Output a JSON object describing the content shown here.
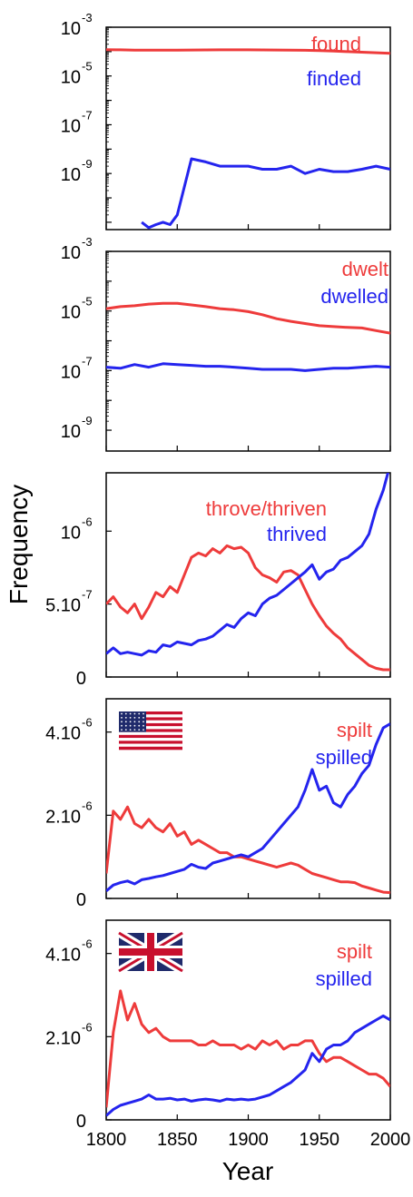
{
  "figure": {
    "ylabel": "Frequency",
    "xlabel": "Year",
    "x_range": [
      1800,
      2000
    ],
    "x_ticks": [
      "1800",
      "1850",
      "1900",
      "1950",
      "2000"
    ]
  },
  "colors": {
    "irregular": "#ee3b3b",
    "regular": "#2424ee"
  },
  "chart_data": [
    {
      "type": "line",
      "yscale": "log",
      "ylim": [
        5e-12,
        0.001
      ],
      "ytick_labels": [
        {
          "base": "10",
          "exp": "-3",
          "value": 0.001
        },
        {
          "base": "10",
          "exp": "-5",
          "value": 1e-05
        },
        {
          "base": "10",
          "exp": "-7",
          "value": 1e-07
        },
        {
          "base": "10",
          "exp": "-9",
          "value": 1e-09
        }
      ],
      "x": [
        1800,
        1810,
        1820,
        1825,
        1830,
        1835,
        1840,
        1845,
        1850,
        1860,
        1870,
        1880,
        1890,
        1900,
        1910,
        1920,
        1930,
        1940,
        1950,
        1960,
        1970,
        1980,
        1990,
        2000
      ],
      "series": [
        {
          "name": "found",
          "color": "#ee3b3b",
          "values": [
            0.00012,
            0.000118,
            0.000115,
            0.000115,
            0.000114,
            0.000114,
            0.000114,
            0.000114,
            0.000115,
            0.000116,
            0.000117,
            0.000118,
            0.000118,
            0.000118,
            0.000117,
            0.000116,
            0.000115,
            0.000113,
            0.00011,
            0.000105,
            0.0001,
            9.5e-05,
            9e-05,
            8.5e-05
          ]
        },
        {
          "name": "finded",
          "color": "#2424ee",
          "values": [
            null,
            null,
            null,
            1e-11,
            6e-12,
            8e-12,
            1e-11,
            8e-12,
            2e-11,
            4e-09,
            3e-09,
            2e-09,
            2e-09,
            2e-09,
            1.5e-09,
            1.5e-09,
            2e-09,
            1e-09,
            1.5e-09,
            1.2e-09,
            1.2e-09,
            1.5e-09,
            2e-09,
            1.5e-09
          ]
        }
      ]
    },
    {
      "type": "line",
      "yscale": "log",
      "ylim": [
        2e-10,
        0.001
      ],
      "ytick_labels": [
        {
          "base": "10",
          "exp": "-3",
          "value": 0.001
        },
        {
          "base": "10",
          "exp": "-5",
          "value": 1e-05
        },
        {
          "base": "10",
          "exp": "-7",
          "value": 1e-07
        },
        {
          "base": "10",
          "exp": "-9",
          "value": 1e-09
        }
      ],
      "x": [
        1800,
        1810,
        1820,
        1830,
        1840,
        1850,
        1860,
        1870,
        1880,
        1890,
        1900,
        1910,
        1920,
        1930,
        1940,
        1950,
        1960,
        1970,
        1980,
        1990,
        2000
      ],
      "series": [
        {
          "name": "dwelt",
          "color": "#ee3b3b",
          "values": [
            1.2e-05,
            1.4e-05,
            1.5e-05,
            1.7e-05,
            1.8e-05,
            1.8e-05,
            1.6e-05,
            1.4e-05,
            1.2e-05,
            1.1e-05,
            9.5e-06,
            7.5e-06,
            5.5e-06,
            4.5e-06,
            3.8e-06,
            3.2e-06,
            3e-06,
            2.8e-06,
            2.7e-06,
            2.2e-06,
            1.8e-06
          ]
        },
        {
          "name": "dwelled",
          "color": "#2424ee",
          "values": [
            1.3e-07,
            1.2e-07,
            1.6e-07,
            1.3e-07,
            1.7e-07,
            1.6e-07,
            1.5e-07,
            1.4e-07,
            1.4e-07,
            1.3e-07,
            1.2e-07,
            1.1e-07,
            1.1e-07,
            1.1e-07,
            1e-07,
            1.1e-07,
            1.2e-07,
            1.2e-07,
            1.3e-07,
            1.4e-07,
            1.3e-07
          ]
        }
      ]
    },
    {
      "type": "line",
      "yscale": "linear",
      "ylim": [
        0,
        1.4e-06
      ],
      "ytick_labels": [
        {
          "base": "0",
          "exp": "",
          "value": 0
        },
        {
          "base": "5.10",
          "exp": "-7",
          "value": 5e-07
        },
        {
          "base": "10",
          "exp": "-6",
          "value": 1e-06
        }
      ],
      "x": [
        1800,
        1805,
        1810,
        1815,
        1820,
        1825,
        1830,
        1835,
        1840,
        1845,
        1850,
        1855,
        1860,
        1865,
        1870,
        1875,
        1880,
        1885,
        1890,
        1895,
        1900,
        1905,
        1910,
        1915,
        1920,
        1925,
        1930,
        1935,
        1940,
        1945,
        1950,
        1955,
        1960,
        1965,
        1970,
        1975,
        1980,
        1985,
        1990,
        1995,
        2000
      ],
      "series": [
        {
          "name": "throve/thriven",
          "color": "#ee3b3b",
          "values": [
            5e-07,
            5.5e-07,
            4.8e-07,
            4.4e-07,
            5e-07,
            4e-07,
            4.8e-07,
            5.8e-07,
            5.5e-07,
            6.2e-07,
            5.8e-07,
            7e-07,
            8.2e-07,
            8.5e-07,
            8.3e-07,
            8.8e-07,
            8.5e-07,
            9e-07,
            8.8e-07,
            8.9e-07,
            8.5e-07,
            7.5e-07,
            7e-07,
            6.8e-07,
            6.5e-07,
            7.2e-07,
            7.3e-07,
            7e-07,
            6e-07,
            5e-07,
            4.2e-07,
            3.5e-07,
            3e-07,
            2.6e-07,
            2e-07,
            1.6e-07,
            1.2e-07,
            8e-08,
            6e-08,
            5e-08,
            5e-08
          ]
        },
        {
          "name": "thrived",
          "color": "#2424ee",
          "values": [
            1.6e-07,
            2e-07,
            1.6e-07,
            1.7e-07,
            1.6e-07,
            1.5e-07,
            1.8e-07,
            1.7e-07,
            2.2e-07,
            2.1e-07,
            2.4e-07,
            2.3e-07,
            2.2e-07,
            2.5e-07,
            2.6e-07,
            2.8e-07,
            3.2e-07,
            3.6e-07,
            3.4e-07,
            4e-07,
            4.4e-07,
            4.2e-07,
            5e-07,
            5.4e-07,
            5.6e-07,
            6e-07,
            6.4e-07,
            6.8e-07,
            7.2e-07,
            7.7e-07,
            6.7e-07,
            7.2e-07,
            7.4e-07,
            8e-07,
            8.2e-07,
            8.6e-07,
            9e-07,
            9.8e-07,
            1.15e-06,
            1.28e-06,
            1.46e-06
          ]
        }
      ]
    },
    {
      "type": "line",
      "yscale": "linear",
      "ylim": [
        0,
        4.8e-06
      ],
      "flag": "us-flag",
      "ytick_labels": [
        {
          "base": "0",
          "exp": "",
          "value": 0
        },
        {
          "base": "2.10",
          "exp": "-6",
          "value": 2e-06
        },
        {
          "base": "4.10",
          "exp": "-6",
          "value": 4e-06
        }
      ],
      "x": [
        1800,
        1805,
        1810,
        1815,
        1820,
        1825,
        1830,
        1835,
        1840,
        1845,
        1850,
        1855,
        1860,
        1865,
        1870,
        1875,
        1880,
        1885,
        1890,
        1895,
        1900,
        1905,
        1910,
        1915,
        1920,
        1925,
        1930,
        1935,
        1940,
        1945,
        1950,
        1955,
        1960,
        1965,
        1970,
        1975,
        1980,
        1985,
        1990,
        1995,
        2000
      ],
      "series": [
        {
          "name": "spilt",
          "color": "#ee3b3b",
          "values": [
            6e-07,
            2.1e-06,
            1.9e-06,
            2.2e-06,
            1.8e-06,
            1.7e-06,
            1.9e-06,
            1.7e-06,
            1.6e-06,
            1.8e-06,
            1.5e-06,
            1.6e-06,
            1.3e-06,
            1.4e-06,
            1.3e-06,
            1.2e-06,
            1.1e-06,
            1.1e-06,
            1e-06,
            1e-06,
            9.5e-07,
            9e-07,
            8.5e-07,
            8e-07,
            7.5e-07,
            8e-07,
            8.5e-07,
            8e-07,
            7e-07,
            6e-07,
            5.5e-07,
            5e-07,
            4.5e-07,
            4e-07,
            4e-07,
            3.8e-07,
            3e-07,
            2.5e-07,
            2e-07,
            1.5e-07,
            1.4e-07
          ]
        },
        {
          "name": "spilled",
          "color": "#2424ee",
          "values": [
            1.8e-07,
            3.2e-07,
            3.8e-07,
            4.2e-07,
            3.5e-07,
            4.5e-07,
            4.8e-07,
            5.2e-07,
            5.5e-07,
            6e-07,
            6.5e-07,
            7e-07,
            8.2e-07,
            7.5e-07,
            7.2e-07,
            8.5e-07,
            9e-07,
            9.5e-07,
            1e-06,
            1.05e-06,
            1e-06,
            1.1e-06,
            1.2e-06,
            1.4e-06,
            1.6e-06,
            1.8e-06,
            2e-06,
            2.2e-06,
            2.6e-06,
            3.1e-06,
            2.6e-06,
            2.7e-06,
            2.3e-06,
            2.2e-06,
            2.5e-06,
            2.7e-06,
            3e-06,
            3.2e-06,
            3.7e-06,
            4.1e-06,
            4.2e-06
          ]
        }
      ]
    },
    {
      "type": "line",
      "yscale": "linear",
      "ylim": [
        0,
        4.8e-06
      ],
      "flag": "uk-flag",
      "ytick_labels": [
        {
          "base": "0",
          "exp": "",
          "value": 0
        },
        {
          "base": "2.10",
          "exp": "-6",
          "value": 2e-06
        },
        {
          "base": "4.10",
          "exp": "-6",
          "value": 4e-06
        }
      ],
      "x": [
        1800,
        1805,
        1810,
        1815,
        1820,
        1825,
        1830,
        1835,
        1840,
        1845,
        1850,
        1855,
        1860,
        1865,
        1870,
        1875,
        1880,
        1885,
        1890,
        1895,
        1900,
        1905,
        1910,
        1915,
        1920,
        1925,
        1930,
        1935,
        1940,
        1945,
        1950,
        1955,
        1960,
        1965,
        1970,
        1975,
        1980,
        1985,
        1990,
        1995,
        2000
      ],
      "series": [
        {
          "name": "spilt",
          "color": "#ee3b3b",
          "values": [
            3e-07,
            2.1e-06,
            3.1e-06,
            2.4e-06,
            2.8e-06,
            2.3e-06,
            2.1e-06,
            2.2e-06,
            2e-06,
            1.9e-06,
            1.9e-06,
            1.9e-06,
            1.9e-06,
            1.8e-06,
            1.8e-06,
            1.9e-06,
            1.8e-06,
            1.8e-06,
            1.8e-06,
            1.7e-06,
            1.8e-06,
            1.7e-06,
            1.9e-06,
            1.8e-06,
            1.9e-06,
            1.7e-06,
            1.8e-06,
            1.8e-06,
            1.9e-06,
            1.9e-06,
            1.6e-06,
            1.4e-06,
            1.5e-06,
            1.5e-06,
            1.4e-06,
            1.3e-06,
            1.2e-06,
            1.1e-06,
            1.1e-06,
            1e-06,
            8e-07
          ]
        },
        {
          "name": "spilled",
          "color": "#2424ee",
          "values": [
            1e-07,
            2.5e-07,
            3.5e-07,
            4e-07,
            4.5e-07,
            5e-07,
            6e-07,
            5e-07,
            5e-07,
            5.2e-07,
            4.8e-07,
            5e-07,
            4.5e-07,
            4.8e-07,
            5e-07,
            4.8e-07,
            4.5e-07,
            5e-07,
            4.8e-07,
            5e-07,
            4.8e-07,
            5e-07,
            5.5e-07,
            6e-07,
            7e-07,
            8e-07,
            9e-07,
            1.05e-06,
            1.2e-06,
            1.6e-06,
            1.4e-06,
            1.7e-06,
            1.8e-06,
            1.8e-06,
            1.9e-06,
            2.1e-06,
            2.2e-06,
            2.3e-06,
            2.4e-06,
            2.5e-06,
            2.4e-06
          ]
        }
      ]
    }
  ]
}
